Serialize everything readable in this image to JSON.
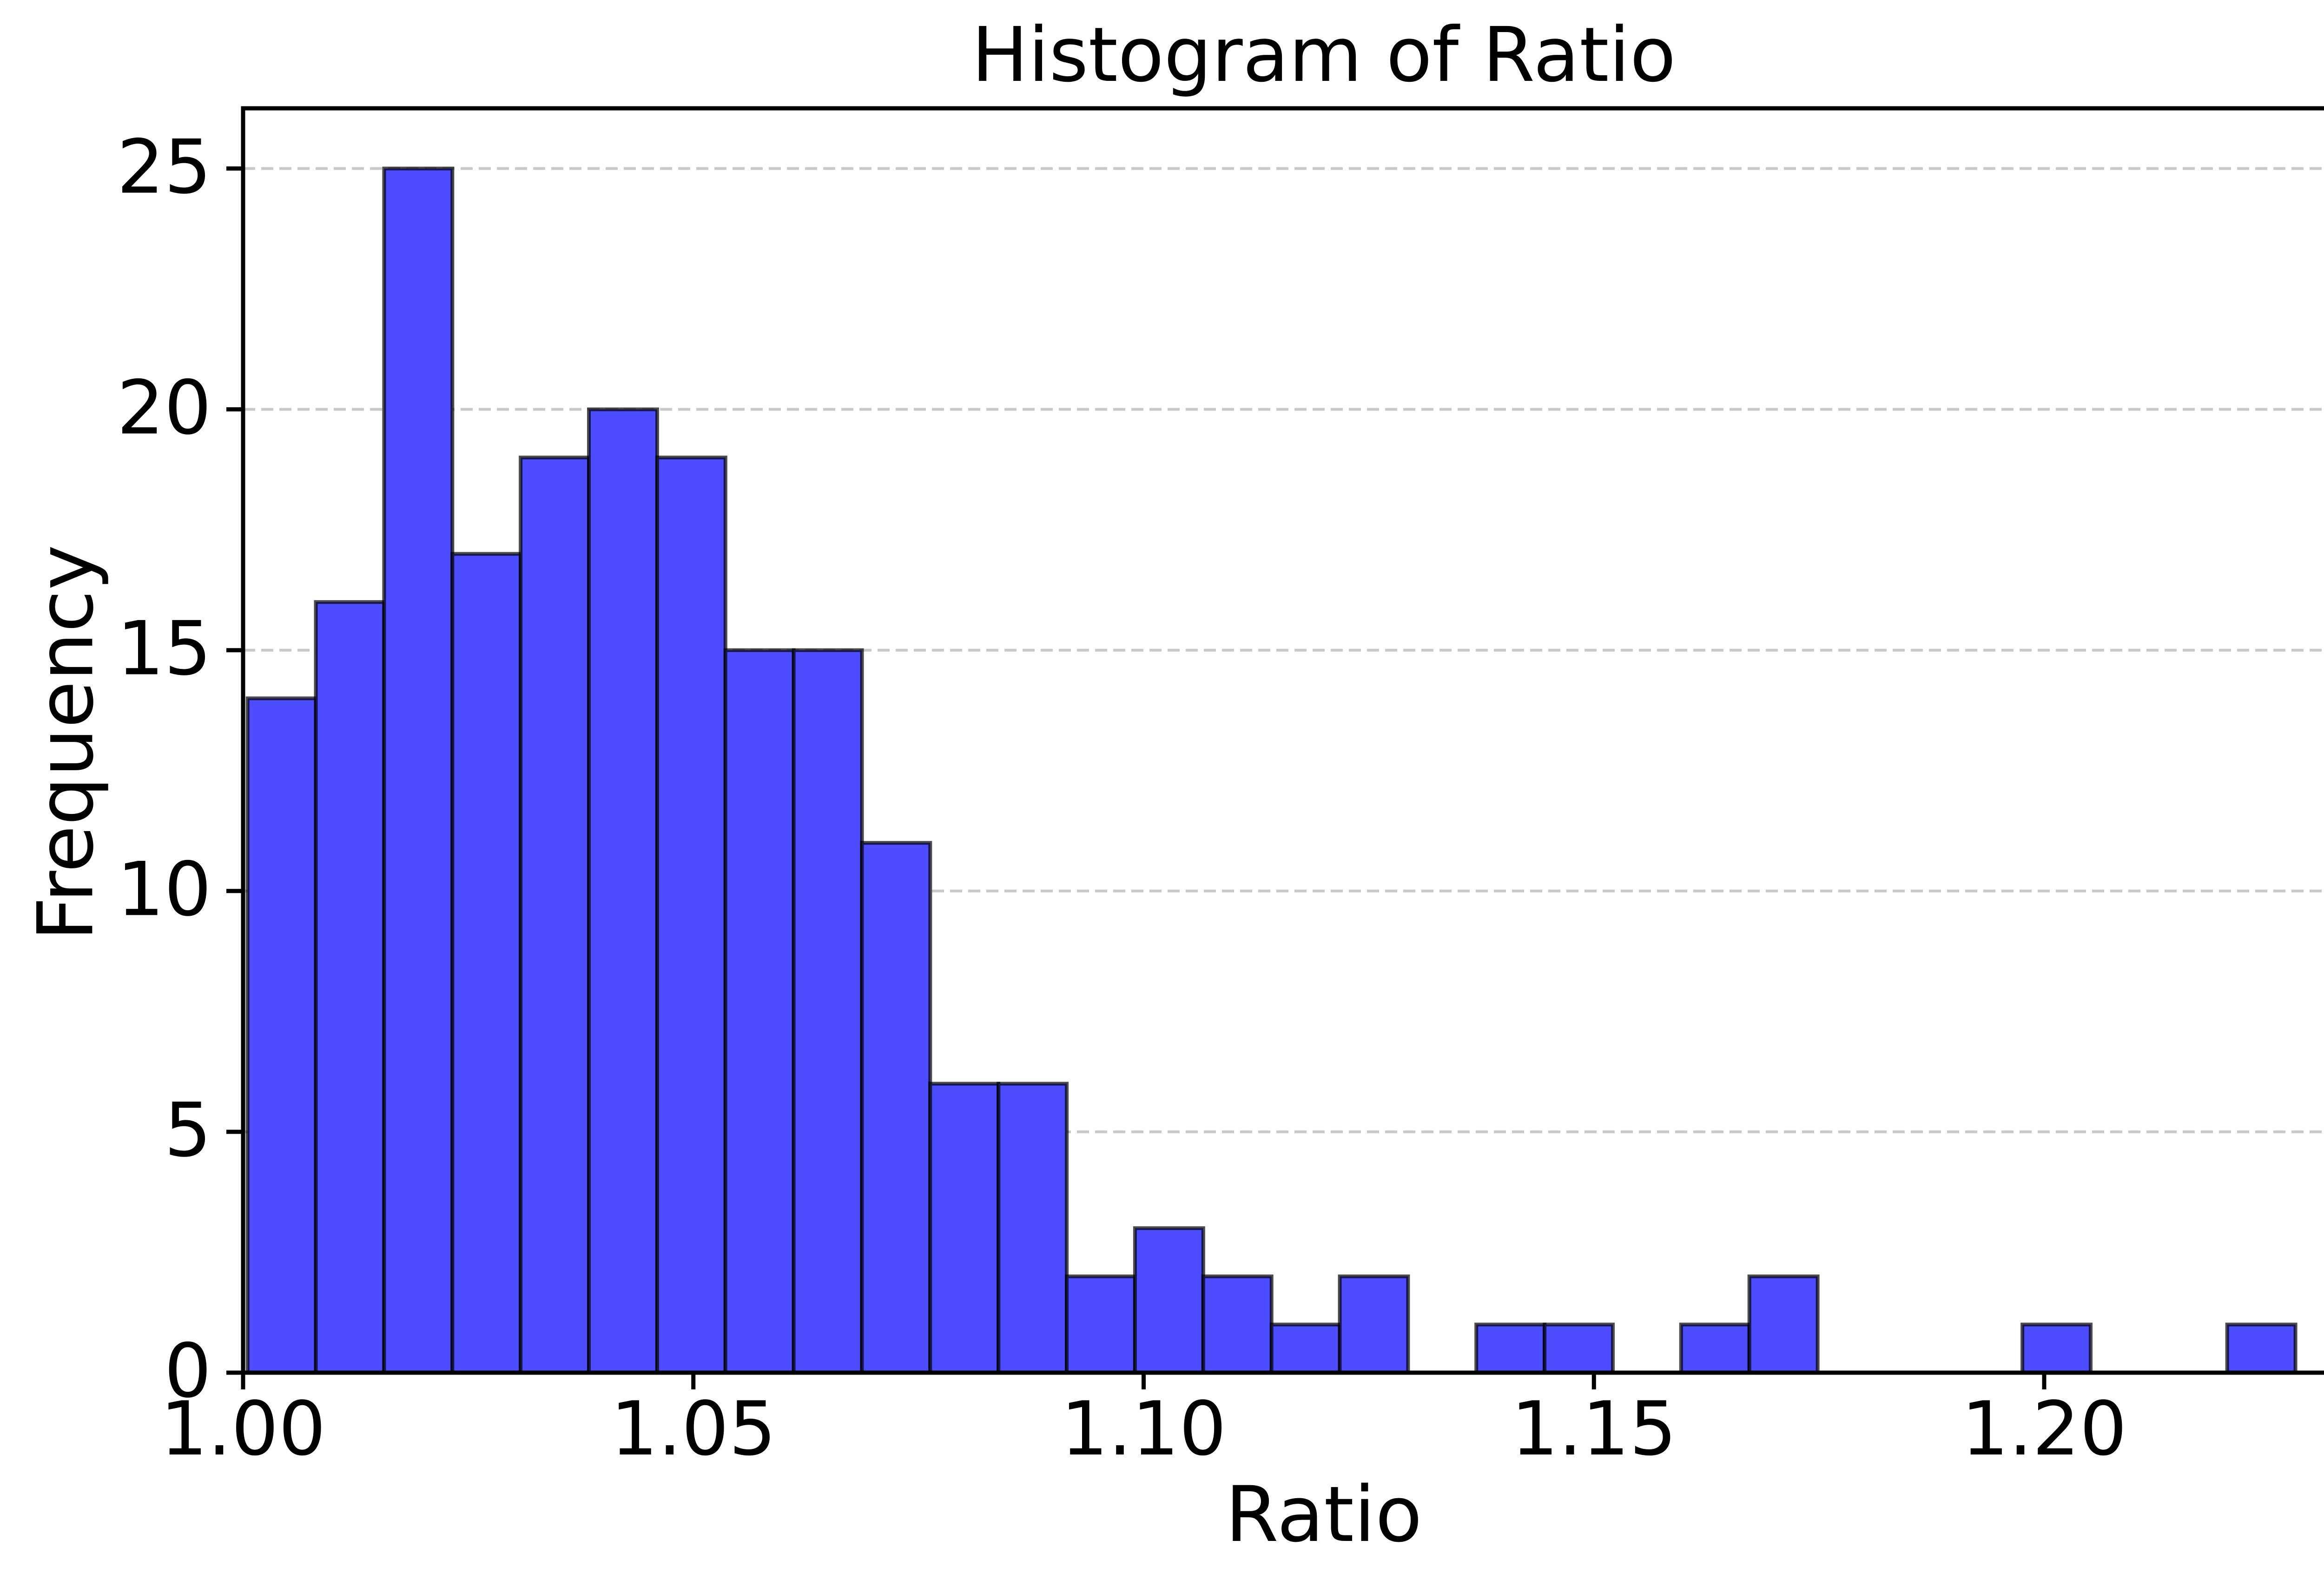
{
  "figure": {
    "background_color": "#ffffff",
    "text_color": "#000000"
  },
  "chart_data": {
    "type": "bar",
    "subtype": "histogram",
    "title": "Histogram of Ratio",
    "xlabel": "Ratio",
    "ylabel": "Frequency",
    "bin_start": 1.0005,
    "bin_width": 0.00758,
    "counts": [
      14,
      16,
      25,
      17,
      19,
      20,
      19,
      15,
      15,
      11,
      6,
      6,
      2,
      3,
      2,
      1,
      2,
      0,
      1,
      1,
      0,
      1,
      2,
      0,
      0,
      0,
      1,
      0,
      0,
      1
    ],
    "total_count": 200,
    "xlim": [
      1.0,
      1.24
    ],
    "ylim": [
      0,
      26.25
    ],
    "x_tick_values": [
      1.0,
      1.05,
      1.1,
      1.15,
      1.2
    ],
    "x_tick_labels": [
      "1.00",
      "1.05",
      "1.10",
      "1.15",
      "1.20"
    ],
    "y_tick_values": [
      0,
      5,
      10,
      15,
      20,
      25
    ],
    "y_tick_labels": [
      "0",
      "5",
      "10",
      "15",
      "20",
      "25"
    ],
    "grid": {
      "axis": "y",
      "style": "dashed",
      "color": "#c9c9c9",
      "below_bars": true
    },
    "bar_fill_color": "#4d4dff",
    "bar_edge_color": "rgba(0,0,0,0.7)",
    "axis_color": "#000000",
    "legend": "none"
  }
}
